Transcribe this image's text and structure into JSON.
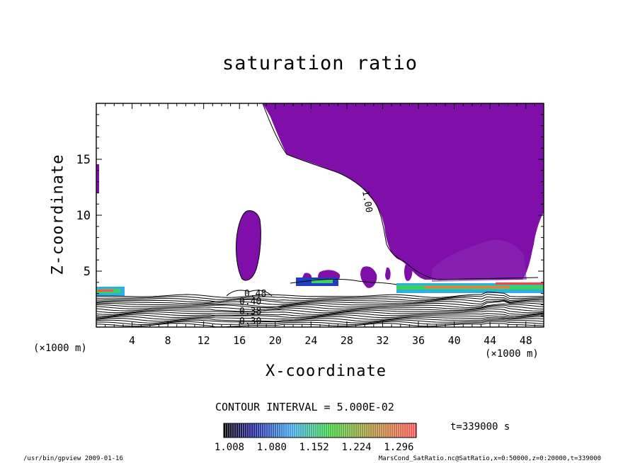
{
  "chart_data": {
    "type": "heatmap",
    "title": "saturation ratio",
    "xlabel": "X-coordinate",
    "ylabel": "Z-coordinate",
    "x_unit": "(×1000 m)",
    "y_unit": "(×1000 m)",
    "xlim": [
      0,
      50
    ],
    "ylim": [
      0,
      20
    ],
    "x_ticks": [
      4,
      8,
      12,
      16,
      20,
      24,
      28,
      32,
      36,
      40,
      44,
      48
    ],
    "y_ticks": [
      5,
      10,
      15
    ],
    "contour_interval": "CONTOUR INTERVAL = 5.000E-02",
    "contour_labels": [
      "1.00",
      "0.40",
      "0.30",
      "0.48",
      "0.38"
    ],
    "colorbar": {
      "ticks": [
        "1.008",
        "1.080",
        "1.152",
        "1.224",
        "1.296"
      ],
      "range": [
        1.008,
        1.296
      ]
    },
    "time_label": "t=339000 s",
    "fill_color": "#7f0fa8"
  },
  "footer": {
    "left": "/usr/bin/gpview   2009-01-16",
    "right": "MarsCond_SatRatio.nc@SatRatio,x=0:50000,z=0:20000,t=339000"
  }
}
